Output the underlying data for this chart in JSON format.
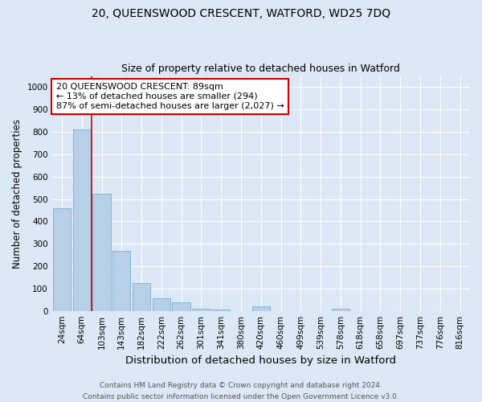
{
  "title1": "20, QUEENSWOOD CRESCENT, WATFORD, WD25 7DQ",
  "title2": "Size of property relative to detached houses in Watford",
  "xlabel": "Distribution of detached houses by size in Watford",
  "ylabel": "Number of detached properties",
  "categories": [
    "24sqm",
    "64sqm",
    "103sqm",
    "143sqm",
    "182sqm",
    "222sqm",
    "262sqm",
    "301sqm",
    "341sqm",
    "380sqm",
    "420sqm",
    "460sqm",
    "499sqm",
    "539sqm",
    "578sqm",
    "618sqm",
    "658sqm",
    "697sqm",
    "737sqm",
    "776sqm",
    "816sqm"
  ],
  "values": [
    460,
    810,
    525,
    270,
    125,
    55,
    40,
    10,
    5,
    0,
    20,
    0,
    0,
    0,
    10,
    0,
    0,
    0,
    0,
    0,
    0
  ],
  "bar_color": "#b8cfe8",
  "bar_edge_color": "#7aafd4",
  "vline_x_index": 2,
  "vline_color": "#cc0000",
  "annotation_text": "20 QUEENSWOOD CRESCENT: 89sqm\n← 13% of detached houses are smaller (294)\n87% of semi-detached houses are larger (2,027) →",
  "annotation_box_color": "#ffffff",
  "annotation_box_edge_color": "#cc0000",
  "ylim": [
    0,
    1050
  ],
  "yticks": [
    0,
    100,
    200,
    300,
    400,
    500,
    600,
    700,
    800,
    900,
    1000
  ],
  "footnote": "Contains HM Land Registry data © Crown copyright and database right 2024.\nContains public sector information licensed under the Open Government Licence v3.0.",
  "bg_color": "#dce8f5",
  "plot_bg_color": "#dce8f5",
  "grid_color": "#ffffff",
  "title1_fontsize": 10,
  "title2_fontsize": 9,
  "xlabel_fontsize": 9.5,
  "ylabel_fontsize": 8.5,
  "tick_fontsize": 7.5,
  "annotation_fontsize": 8,
  "footnote_fontsize": 6.5
}
